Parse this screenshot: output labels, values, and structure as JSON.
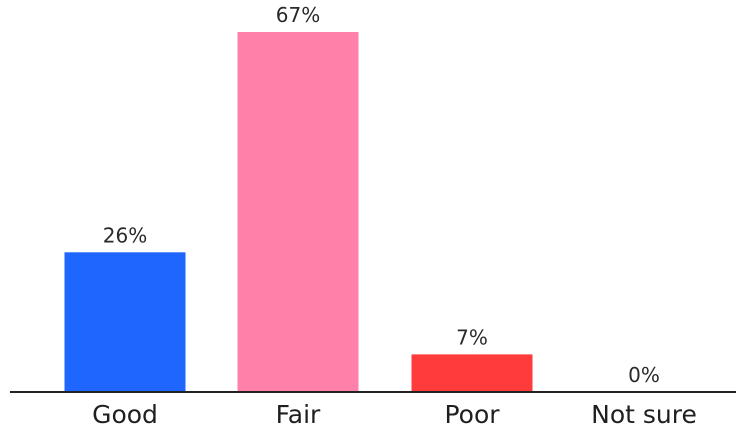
{
  "chart_data": {
    "type": "bar",
    "categories": [
      "Good",
      "Fair",
      "Poor",
      "Not sure"
    ],
    "values": [
      26,
      67,
      7,
      0
    ],
    "value_labels": [
      "26%",
      "67%",
      "7%",
      "0%"
    ],
    "unit": "%",
    "colors": [
      "#1f66ff",
      "#ff80a8",
      "#ff3b3b",
      "#cccccc"
    ],
    "ylim": [
      0,
      67
    ],
    "grid": false,
    "legend": "none",
    "title": "",
    "xlabel": "",
    "ylabel": ""
  }
}
